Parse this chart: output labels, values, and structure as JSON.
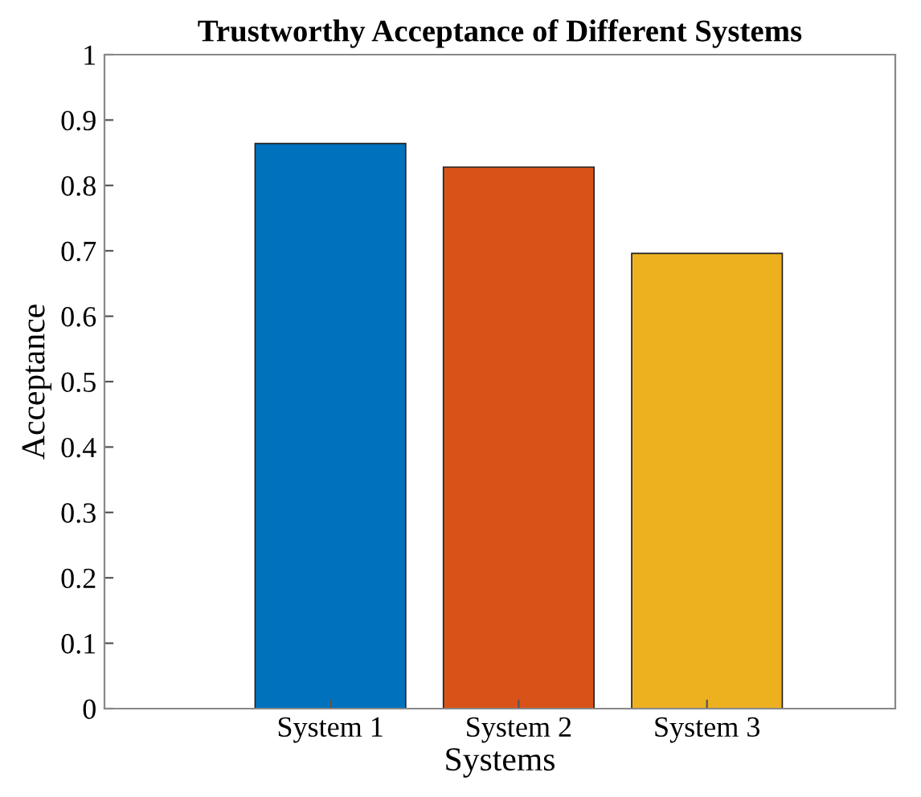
{
  "chart_data": {
    "type": "bar",
    "title": "Trustworthy Acceptance of Different Systems",
    "xlabel": "Systems",
    "ylabel": "Acceptance",
    "categories": [
      "System 1",
      "System 2",
      "System 3"
    ],
    "values": [
      0.864,
      0.828,
      0.696
    ],
    "colors": [
      "#0072bd",
      "#d95319",
      "#edb120"
    ],
    "ylim": [
      0,
      1
    ],
    "yticks": [
      0,
      0.1,
      0.2,
      0.3,
      0.4,
      0.5,
      0.6,
      0.7,
      0.8,
      0.9,
      1
    ],
    "grid": false
  }
}
